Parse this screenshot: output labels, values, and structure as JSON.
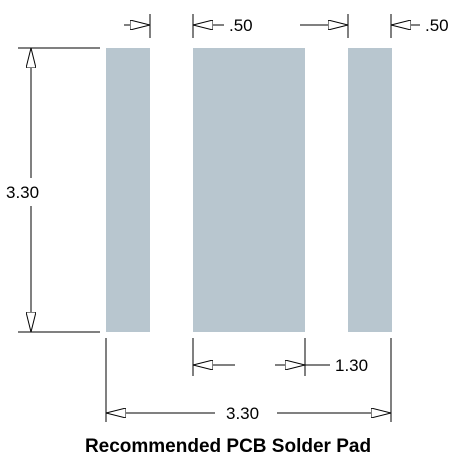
{
  "drawing": {
    "pad_color": "#b8c6cf",
    "line_color": "#000000",
    "dims": {
      "top_gap_left": "",
      "top_center_width": ".50",
      "top_gap_right": "",
      "right_pad_width": ".50",
      "height": "3.30",
      "center_pad_width": "1.30",
      "overall_width": "3.30"
    }
  },
  "caption": "Recommended PCB Solder Pad"
}
